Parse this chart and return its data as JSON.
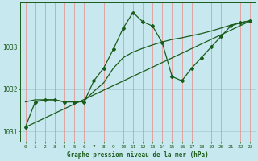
{
  "title": "Graphe pression niveau de la mer (hPa)",
  "bg_color": "#c8e8f0",
  "plot_bg_color": "#c8e8f0",
  "line_color": "#1a5c1a",
  "grid_color_v": "#e88888",
  "grid_color_h": "#a8c8d0",
  "xmin": -0.5,
  "xmax": 23.5,
  "ymin": 1030.75,
  "ymax": 1034.05,
  "yticks": [
    1031,
    1032,
    1033
  ],
  "xticks": [
    0,
    1,
    2,
    3,
    4,
    5,
    6,
    7,
    8,
    9,
    10,
    11,
    12,
    13,
    14,
    15,
    16,
    17,
    18,
    19,
    20,
    21,
    22,
    23
  ],
  "series1_x": [
    0,
    1,
    2,
    3,
    4,
    5,
    6,
    7,
    8,
    9,
    10,
    11,
    12,
    13,
    14,
    15,
    16,
    17,
    18,
    19,
    20,
    21,
    22,
    23
  ],
  "series1_y": [
    1031.1,
    1031.7,
    1031.75,
    1031.75,
    1031.7,
    1031.7,
    1031.7,
    1032.2,
    1032.5,
    1032.95,
    1033.45,
    1033.82,
    1033.6,
    1033.5,
    1033.1,
    1032.3,
    1032.2,
    1032.5,
    1032.75,
    1033.0,
    1033.25,
    1033.5,
    1033.58,
    1033.62
  ],
  "series2_x": [
    0,
    1,
    2,
    3,
    4,
    5,
    6,
    7,
    8,
    9,
    10,
    11,
    12,
    13,
    14,
    15,
    16,
    17,
    18,
    19,
    20,
    21,
    22,
    23
  ],
  "series2_y": [
    1031.7,
    1031.75,
    1031.75,
    1031.75,
    1031.7,
    1031.7,
    1031.72,
    1031.95,
    1032.15,
    1032.5,
    1032.75,
    1032.88,
    1032.97,
    1033.05,
    1033.12,
    1033.18,
    1033.22,
    1033.27,
    1033.32,
    1033.38,
    1033.45,
    1033.52,
    1033.58,
    1033.63
  ],
  "series3_x": [
    0,
    23
  ],
  "series3_y": [
    1031.1,
    1033.62
  ]
}
